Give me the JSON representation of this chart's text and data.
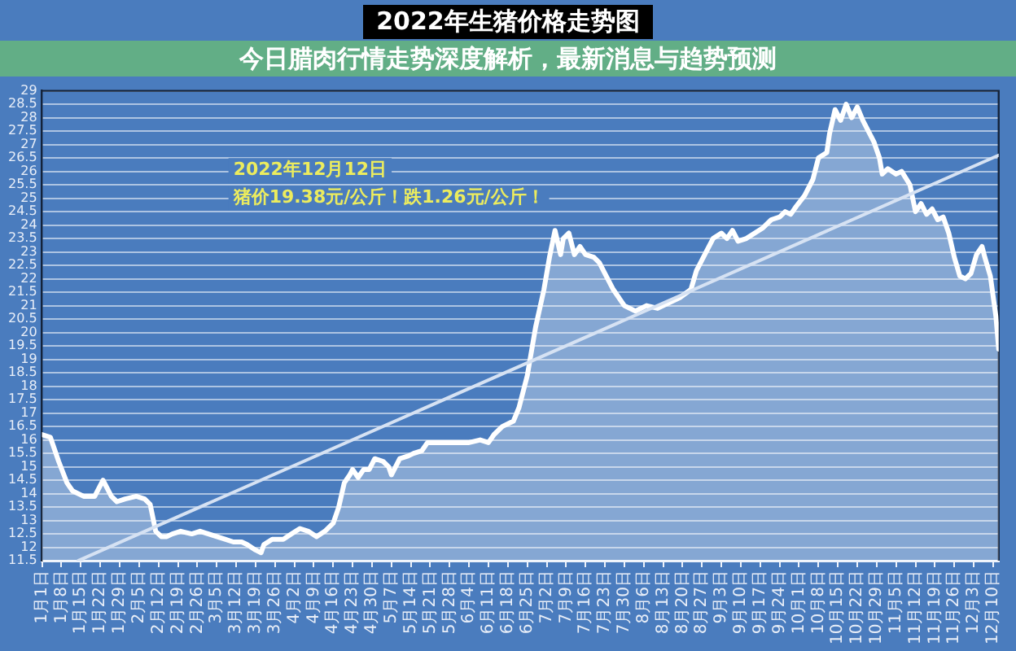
{
  "chart_data": {
    "type": "area",
    "title": "2022年生猪价格走势图",
    "subtitle": "今日腊肉行情走势深度解析，最新消息与趋势预测",
    "annotations": [
      "2022年12月12日",
      "猪价19.38元/公斤！跌1.26元/公斤！"
    ],
    "x": [
      "--01-01",
      "--01-04",
      "--01-07",
      "--01-10",
      "--01-12",
      "--01-16",
      "--01-20",
      "--01-22",
      "--01-23",
      "--01-26",
      "--01-28",
      "--01-31",
      "--02-04",
      "--02-07",
      "--02-09",
      "--02-11",
      "--02-13",
      "--02-15",
      "--02-17",
      "--02-20",
      "--02-24",
      "--02-27",
      "--03-02",
      "--03-05",
      "--03-08",
      "--03-11",
      "--03-14",
      "--03-16",
      "--03-19",
      "--03-21",
      "--03-22",
      "--03-25",
      "--03-29",
      "--04-01",
      "--04-04",
      "--04-07",
      "--04-10",
      "--04-13",
      "--04-16",
      "--04-18",
      "--04-20",
      "--04-22",
      "--04-23",
      "--04-25",
      "--04-27",
      "--04-29",
      "--05-01",
      "--05-04",
      "--05-06",
      "--05-07",
      "--05-10",
      "--05-13",
      "--05-15",
      "--05-18",
      "--05-20",
      "--05-23",
      "--05-27",
      "--05-31",
      "--06-04",
      "--06-08",
      "--06-11",
      "--06-13",
      "--06-16",
      "--06-20",
      "--06-22",
      "--06-25",
      "--06-28",
      "--07-01",
      "--07-03",
      "--07-05",
      "--07-07",
      "--07-08",
      "--07-10",
      "--07-12",
      "--07-14",
      "--07-16",
      "--07-19",
      "--07-21",
      "--07-23",
      "--07-26",
      "--07-30",
      "--08-03",
      "--08-07",
      "--08-11",
      "--08-15",
      "--08-19",
      "--08-23",
      "--08-25",
      "--08-28",
      "--08-31",
      "--09-03",
      "--09-05",
      "--09-07",
      "--09-09",
      "--09-12",
      "--09-15",
      "--09-18",
      "--09-21",
      "--09-24",
      "--09-26",
      "--09-28",
      "--09-30",
      "--10-03",
      "--10-06",
      "--10-08",
      "--10-11",
      "--10-12",
      "--10-14",
      "--10-16",
      "--10-18",
      "--10-20",
      "--10-22",
      "--10-24",
      "--10-26",
      "--10-28",
      "--10-30",
      "--10-31",
      "--11-02",
      "--11-05",
      "--11-07",
      "--11-10",
      "--11-12",
      "--11-14",
      "--11-16",
      "--11-18",
      "--11-20",
      "--11-22",
      "--11-24",
      "--11-26",
      "--11-28",
      "--11-30",
      "--12-02",
      "--12-04",
      "--12-06",
      "--12-07",
      "--12-09",
      "--12-11",
      "--12-12"
    ],
    "xlim": [
      "--01-01",
      "--12-12"
    ],
    "xticks": [
      {
        "value": "--01-01",
        "label": "1月1日"
      },
      {
        "value": "--01-08",
        "label": "1月8日"
      },
      {
        "value": "--01-15",
        "label": "1月15日"
      },
      {
        "value": "--01-22",
        "label": "1月22日"
      },
      {
        "value": "--01-29",
        "label": "1月29日"
      },
      {
        "value": "--02-05",
        "label": "2月5日"
      },
      {
        "value": "--02-12",
        "label": "2月12日"
      },
      {
        "value": "--02-19",
        "label": "2月19日"
      },
      {
        "value": "--02-26",
        "label": "2月26日"
      },
      {
        "value": "--03-05",
        "label": "3月5日"
      },
      {
        "value": "--03-12",
        "label": "3月12日"
      },
      {
        "value": "--03-19",
        "label": "3月19日"
      },
      {
        "value": "--03-26",
        "label": "3月26日"
      },
      {
        "value": "--04-02",
        "label": "4月2日"
      },
      {
        "value": "--04-09",
        "label": "4月9日"
      },
      {
        "value": "--04-16",
        "label": "4月16日"
      },
      {
        "value": "--04-23",
        "label": "4月23日"
      },
      {
        "value": "--04-30",
        "label": "4月30日"
      },
      {
        "value": "--05-07",
        "label": "5月7日"
      },
      {
        "value": "--05-14",
        "label": "5月14日"
      },
      {
        "value": "--05-21",
        "label": "5月21日"
      },
      {
        "value": "--05-28",
        "label": "5月28日"
      },
      {
        "value": "--06-04",
        "label": "6月4日"
      },
      {
        "value": "--06-11",
        "label": "6月11日"
      },
      {
        "value": "--06-18",
        "label": "6月18日"
      },
      {
        "value": "--06-25",
        "label": "6月25日"
      },
      {
        "value": "--07-02",
        "label": "7月2日"
      },
      {
        "value": "--07-09",
        "label": "7月9日"
      },
      {
        "value": "--07-16",
        "label": "7月16日"
      },
      {
        "value": "--07-23",
        "label": "7月23日"
      },
      {
        "value": "--07-30",
        "label": "7月30日"
      },
      {
        "value": "--08-06",
        "label": "8月6日"
      },
      {
        "value": "--08-13",
        "label": "8月13日"
      },
      {
        "value": "--08-20",
        "label": "8月20日"
      },
      {
        "value": "--08-27",
        "label": "8月27日"
      },
      {
        "value": "--09-03",
        "label": "9月3日"
      },
      {
        "value": "--09-10",
        "label": "9月10日"
      },
      {
        "value": "--09-17",
        "label": "9月17日"
      },
      {
        "value": "--09-24",
        "label": "9月24日"
      },
      {
        "value": "--10-01",
        "label": "10月1日"
      },
      {
        "value": "--10-08",
        "label": "10月8日"
      },
      {
        "value": "--10-15",
        "label": "10月15日"
      },
      {
        "value": "--10-22",
        "label": "10月22日"
      },
      {
        "value": "--10-29",
        "label": "10月29日"
      },
      {
        "value": "--11-05",
        "label": "11月5日"
      },
      {
        "value": "--11-12",
        "label": "11月12日"
      },
      {
        "value": "--11-19",
        "label": "11月19日"
      },
      {
        "value": "--11-26",
        "label": "11月26日"
      },
      {
        "value": "--12-03",
        "label": "12月3日"
      },
      {
        "value": "--12-10",
        "label": "12月10日"
      }
    ],
    "ylim": [
      11.5,
      29
    ],
    "yticks": [
      11.5,
      12,
      12.5,
      13,
      13.5,
      14,
      14.5,
      15,
      15.5,
      16,
      16.5,
      17,
      17.5,
      18,
      18.5,
      19,
      19.5,
      20,
      20.5,
      21,
      21.5,
      22,
      22.5,
      23,
      23.5,
      24,
      24.5,
      25,
      25.5,
      26,
      26.5,
      27,
      27.5,
      28,
      28.5,
      29
    ],
    "grid": "y",
    "series": [
      {
        "color": "#ffffff",
        "values": [
          16.2,
          16.1,
          15.2,
          14.4,
          14.1,
          13.9,
          13.9,
          14.3,
          14.5,
          13.9,
          13.7,
          13.8,
          13.9,
          13.8,
          13.6,
          12.6,
          12.4,
          12.4,
          12.5,
          12.6,
          12.5,
          12.6,
          12.5,
          12.4,
          12.3,
          12.2,
          12.2,
          12.1,
          11.9,
          11.8,
          12.1,
          12.3,
          12.3,
          12.5,
          12.7,
          12.6,
          12.4,
          12.6,
          12.9,
          13.5,
          14.4,
          14.7,
          14.9,
          14.6,
          14.9,
          14.9,
          15.3,
          15.2,
          15.0,
          14.7,
          15.3,
          15.4,
          15.5,
          15.6,
          15.9,
          15.9,
          15.9,
          15.9,
          15.9,
          16.0,
          15.9,
          16.2,
          16.5,
          16.7,
          17.2,
          18.4,
          20.2,
          21.6,
          22.8,
          23.8,
          22.9,
          23.5,
          23.7,
          22.9,
          23.2,
          22.9,
          22.8,
          22.6,
          22.2,
          21.6,
          21.0,
          20.8,
          21.0,
          20.9,
          21.1,
          21.3,
          21.6,
          22.3,
          22.9,
          23.5,
          23.7,
          23.5,
          23.8,
          23.4,
          23.5,
          23.7,
          23.9,
          24.2,
          24.3,
          24.5,
          24.4,
          24.7,
          25.1,
          25.7,
          26.5,
          26.7,
          27.4,
          28.3,
          27.9,
          28.5,
          28.0,
          28.4,
          27.9,
          27.5,
          27.1,
          26.5,
          25.9,
          26.1,
          25.9,
          26.0,
          25.5,
          24.5,
          24.8,
          24.4,
          24.6,
          24.2,
          24.3,
          23.7,
          22.8,
          22.1,
          22.0,
          22.2,
          22.9,
          23.2,
          22.8,
          22.1,
          20.6,
          19.38
        ]
      },
      {
        "type": "line",
        "color": "#d6e2f3",
        "x": [
          "--01-14",
          "--12-12"
        ],
        "values": [
          11.5,
          26.6
        ]
      }
    ]
  }
}
